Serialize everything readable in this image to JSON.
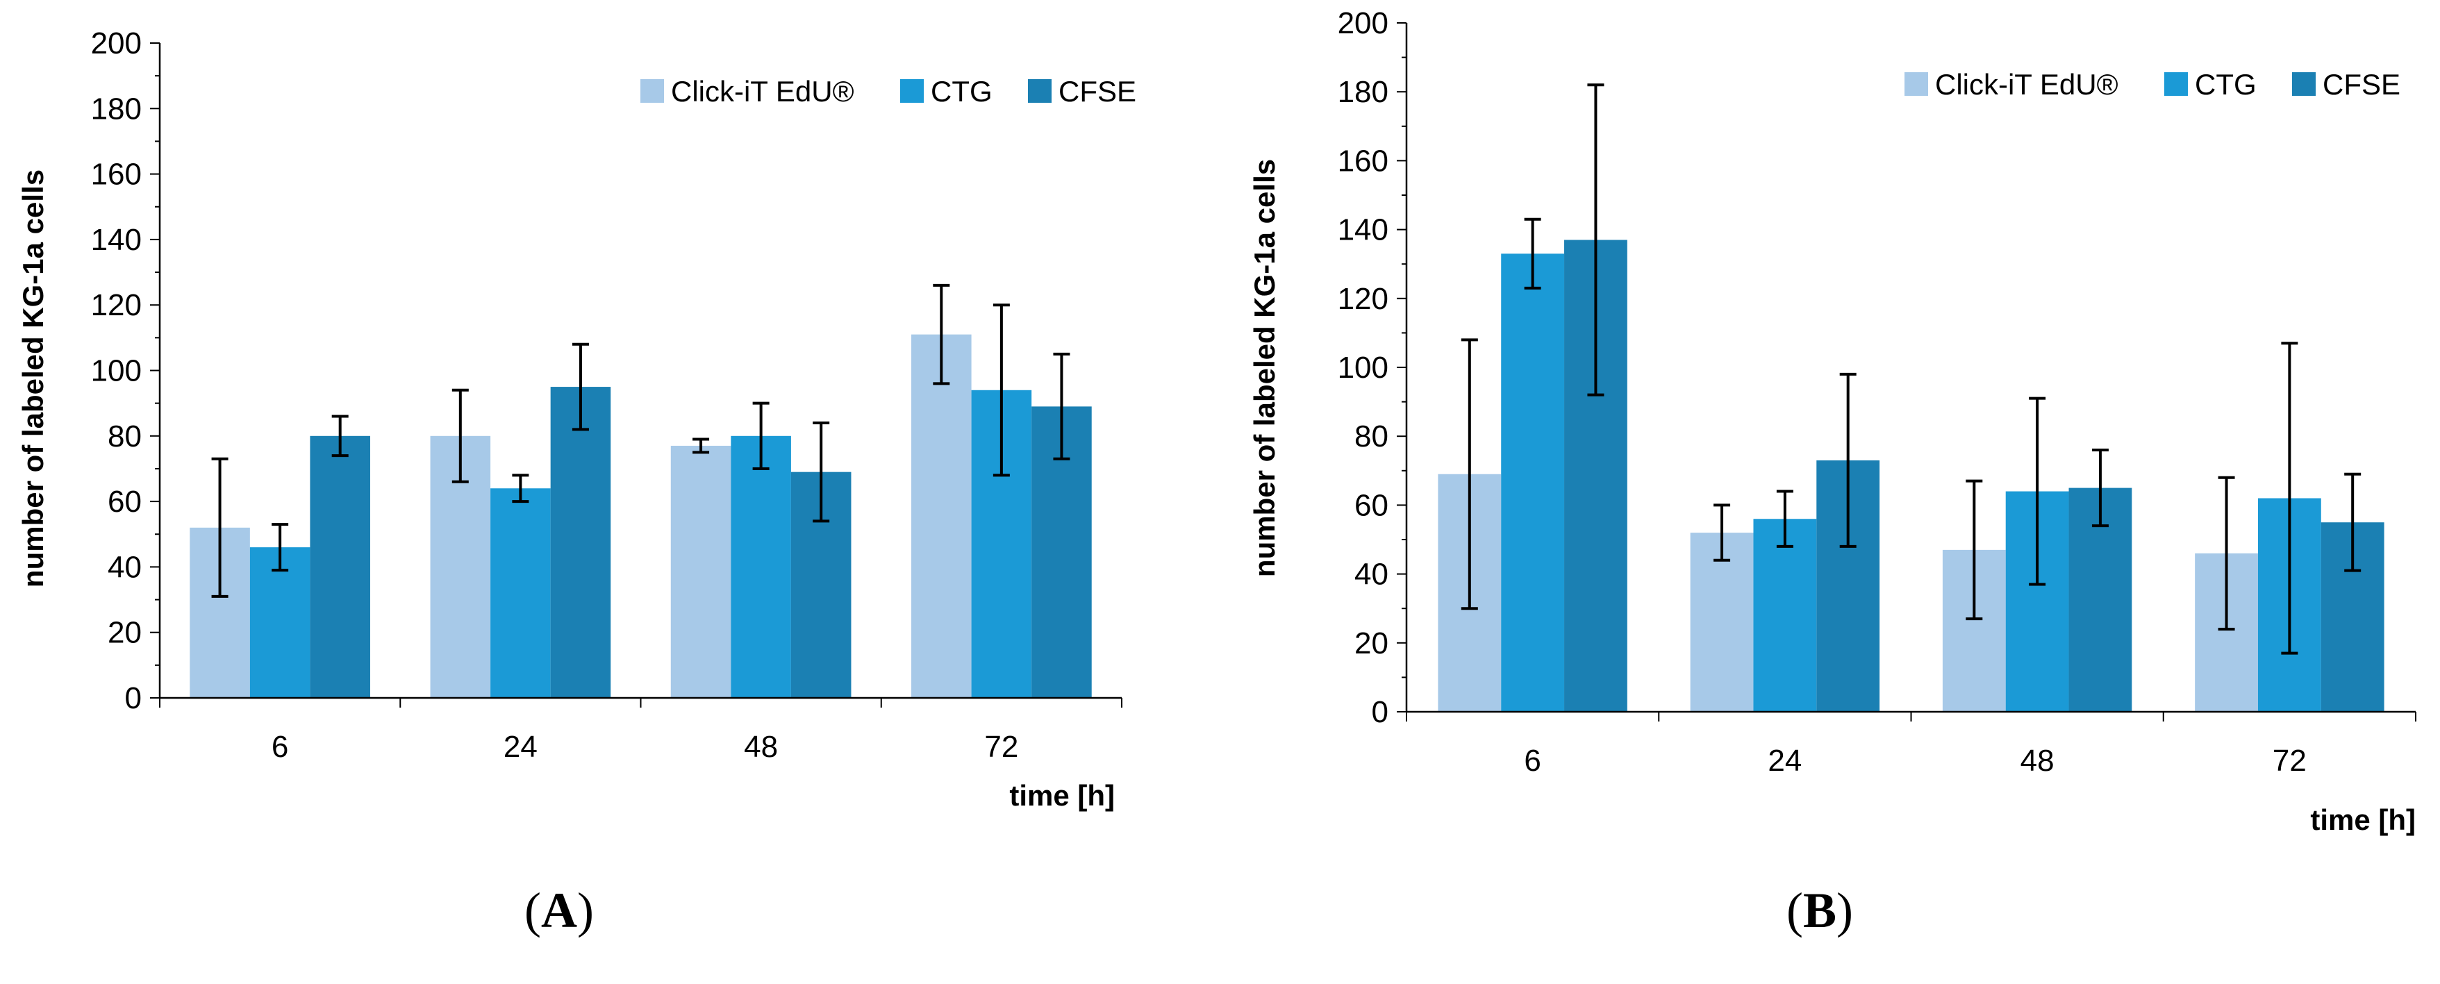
{
  "chart_data": [
    {
      "type": "bar",
      "panel_label": "A",
      "xlabel": "time [h]",
      "ylabel": "number of labeled KG-1a cells",
      "ylim": [
        0,
        200
      ],
      "ytick_step": 20,
      "categories": [
        "6",
        "24",
        "48",
        "72"
      ],
      "legend_position": "top-right",
      "grid": false,
      "series": [
        {
          "name": "Click-iT EdU®",
          "color": "#a7c9e8",
          "values": [
            52,
            80,
            77,
            111
          ],
          "errors": [
            21,
            14,
            2,
            15
          ]
        },
        {
          "name": "CTG",
          "color": "#1b9ad6",
          "values": [
            46,
            64,
            80,
            94
          ],
          "errors": [
            7,
            4,
            10,
            26
          ]
        },
        {
          "name": "CFSE",
          "color": "#1b80b3",
          "values": [
            80,
            95,
            69,
            89
          ],
          "errors": [
            6,
            13,
            15,
            16
          ]
        }
      ]
    },
    {
      "type": "bar",
      "panel_label": "B",
      "xlabel": "time [h]",
      "ylabel": "number of labeled KG-1a cells",
      "ylim": [
        0,
        200
      ],
      "ytick_step": 20,
      "categories": [
        "6",
        "24",
        "48",
        "72"
      ],
      "legend_position": "top-right",
      "grid": false,
      "series": [
        {
          "name": "Click-iT EdU®",
          "color": "#a7c9e8",
          "values": [
            69,
            52,
            47,
            46
          ],
          "errors": [
            39,
            8,
            20,
            22
          ]
        },
        {
          "name": "CTG",
          "color": "#1b9ad6",
          "values": [
            133,
            56,
            64,
            62
          ],
          "errors": [
            10,
            8,
            27,
            45
          ]
        },
        {
          "name": "CFSE",
          "color": "#1b80b3",
          "values": [
            137,
            73,
            65,
            55
          ],
          "errors": [
            45,
            25,
            11,
            14
          ]
        }
      ]
    }
  ]
}
